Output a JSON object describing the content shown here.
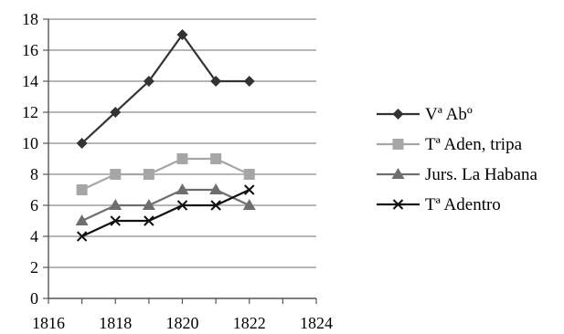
{
  "chart_data": {
    "type": "line",
    "title": "",
    "xlabel": "",
    "ylabel": "",
    "xlim": [
      1816,
      1824
    ],
    "ylim": [
      0,
      18
    ],
    "x_ticks": [
      "1816",
      "1818",
      "1820",
      "1822",
      "1824"
    ],
    "y_ticks": [
      "0",
      "2",
      "4",
      "6",
      "8",
      "10",
      "12",
      "14",
      "16",
      "18"
    ],
    "grid": "horizontal",
    "legend_position": "right",
    "x": [
      1817,
      1818,
      1819,
      1820,
      1821,
      1822
    ],
    "series": [
      {
        "name": "Vª Abº",
        "marker": "diamond",
        "color": "#333333",
        "values": [
          10,
          12,
          14,
          17,
          14,
          14
        ]
      },
      {
        "name": "Tª Aden, tripa",
        "marker": "square",
        "color": "#a6a6a6",
        "values": [
          7,
          8,
          8,
          9,
          9,
          8
        ]
      },
      {
        "name": "Jurs. La Habana",
        "marker": "triangle",
        "color": "#6e6e6e",
        "values": [
          5,
          6,
          6,
          7,
          7,
          6
        ]
      },
      {
        "name": "Tª Adentro",
        "marker": "x",
        "color": "#111111",
        "values": [
          4,
          5,
          5,
          6,
          6,
          7
        ]
      }
    ]
  }
}
